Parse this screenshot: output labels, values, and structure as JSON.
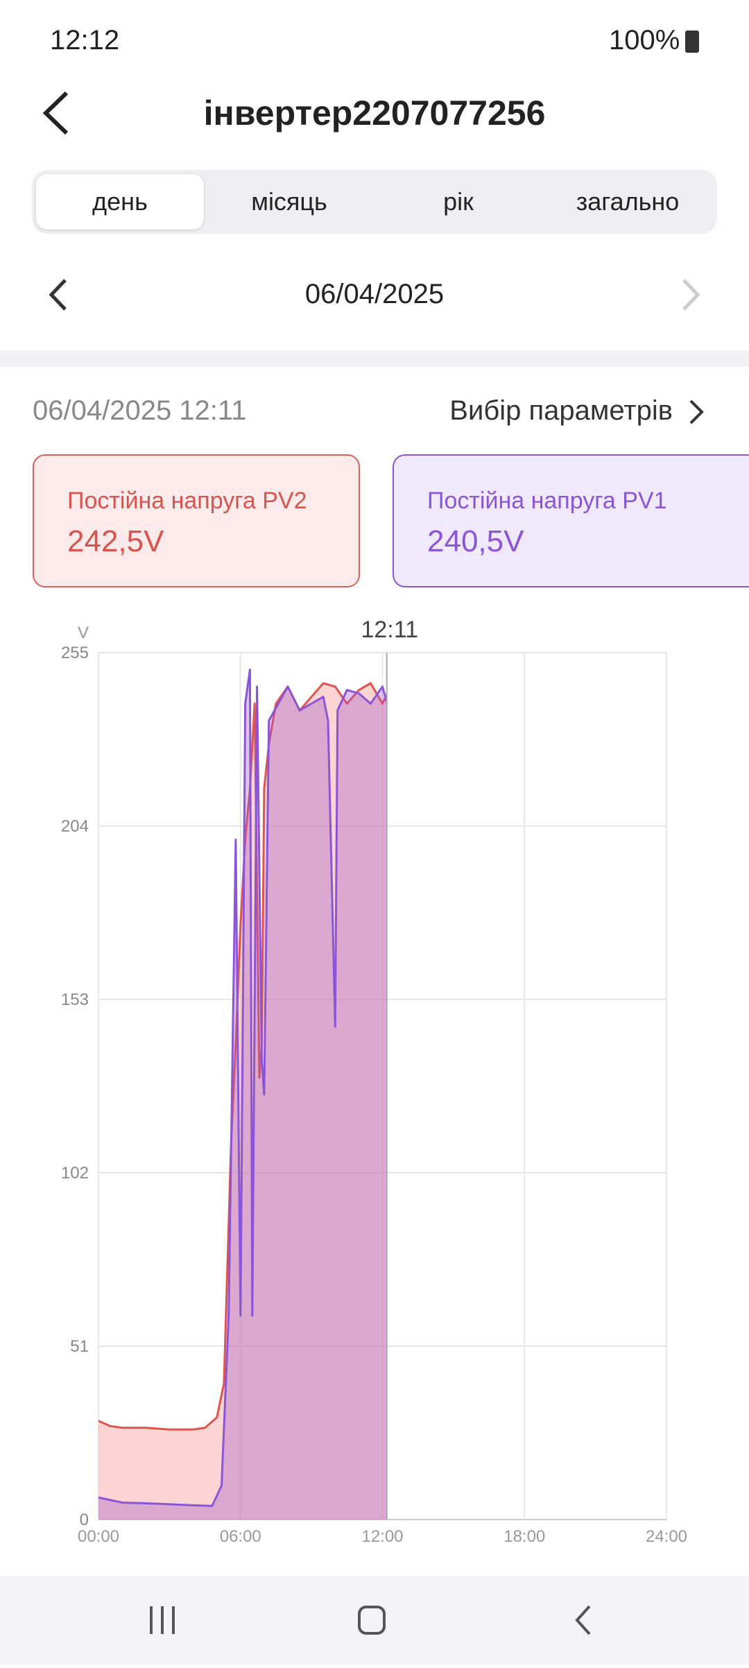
{
  "status_bar": {
    "time": "12:12",
    "battery": "100%"
  },
  "header": {
    "title": "інвертер2207077256"
  },
  "tabs": [
    "день",
    "місяць",
    "рік",
    "загально"
  ],
  "date_nav": {
    "date": "06/04/2025"
  },
  "info": {
    "timestamp": "06/04/2025 12:11",
    "params_link": "Вибір параметрів"
  },
  "cards": [
    {
      "label": "Постійна напруга PV2",
      "value": "242,5V"
    },
    {
      "label": "Постійна напруга PV1",
      "value": "240,5V"
    }
  ],
  "chart_data": {
    "type": "area",
    "y_unit": "V",
    "annotation": {
      "x": 12.1833,
      "text": "12:11"
    },
    "xlim": [
      0,
      24
    ],
    "xticks": [
      {
        "value": 0,
        "label": "00:00"
      },
      {
        "value": 6,
        "label": "06:00"
      },
      {
        "value": 12,
        "label": "12:00"
      },
      {
        "value": 18,
        "label": "18:00"
      },
      {
        "value": 24,
        "label": "24:00"
      }
    ],
    "ylim": [
      0,
      255
    ],
    "yticks": [
      0,
      51,
      102,
      153,
      204,
      255
    ],
    "grid": true,
    "series": [
      {
        "name": "PV2",
        "color": "#e0534f",
        "fill": "rgba(247,160,160,0.45)",
        "x": [
          0,
          0.5,
          1,
          2,
          3,
          4,
          4.5,
          5,
          5.3,
          5.6,
          5.8,
          6.0,
          6.2,
          6.4,
          6.6,
          6.8,
          6.9,
          7.0,
          7.2,
          7.5,
          8,
          8.5,
          9,
          9.5,
          10,
          10.5,
          11,
          11.5,
          12,
          12.18
        ],
        "values": [
          29,
          27.5,
          27,
          27,
          26.5,
          26.5,
          27,
          30,
          40,
          110,
          140,
          175,
          200,
          215,
          240,
          130,
          140,
          215,
          228,
          240,
          245,
          238,
          242,
          246,
          245,
          240,
          244,
          246,
          240,
          242.5
        ]
      },
      {
        "name": "PV1",
        "color": "#8a55d6",
        "fill": "rgba(160,90,200,0.35)",
        "x": [
          0,
          1,
          2,
          3,
          4,
          4.8,
          5.2,
          5.5,
          5.8,
          6.0,
          6.2,
          6.4,
          6.5,
          6.7,
          6.9,
          7.0,
          7.2,
          8,
          8.5,
          9,
          9.5,
          9.7,
          10.0,
          10.1,
          10.5,
          11,
          11.5,
          12,
          12.18
        ],
        "values": [
          6.5,
          5,
          4.8,
          4.5,
          4.2,
          4,
          10,
          60,
          200,
          60,
          240,
          250,
          60,
          245,
          135,
          125,
          235,
          245,
          238,
          240,
          242,
          235,
          145,
          238,
          244,
          243,
          240,
          245,
          240.5
        ]
      }
    ]
  }
}
